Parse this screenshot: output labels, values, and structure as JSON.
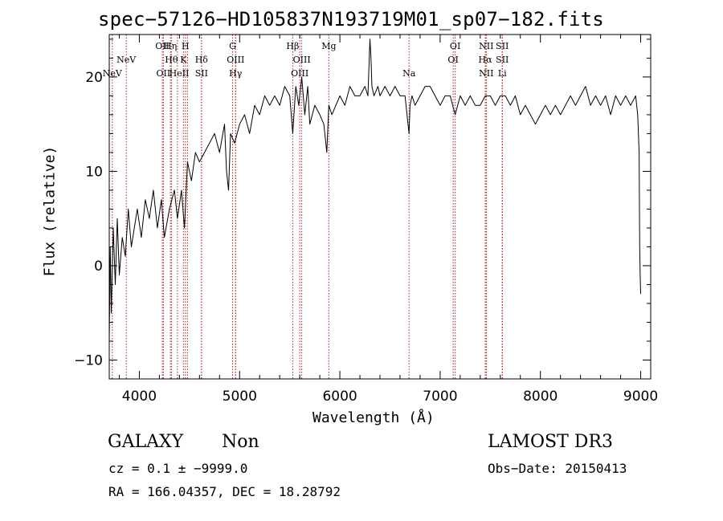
{
  "chart_data": {
    "type": "line",
    "title": "spec−57126−HD105837N193719M01_sp07−182.fits",
    "xlabel": "Wavelength (Å)",
    "ylabel": "Flux (relative)",
    "xlim": [
      3700,
      9100
    ],
    "ylim": [
      -12,
      24.5
    ],
    "xticks": [
      4000,
      5000,
      6000,
      7000,
      8000,
      9000
    ],
    "xtick_labels": [
      "4000",
      "5000",
      "6000",
      "7000",
      "8000",
      "9000"
    ],
    "yticks": [
      -10,
      0,
      10,
      20
    ],
    "ytick_labels": [
      "−10",
      "0",
      "10",
      "20"
    ],
    "series": [
      {
        "name": "flux",
        "x": [
          3700,
          3710,
          3720,
          3740,
          3760,
          3780,
          3800,
          3830,
          3860,
          3890,
          3920,
          3950,
          3980,
          4020,
          4060,
          4100,
          4140,
          4180,
          4220,
          4250,
          4300,
          4350,
          4380,
          4420,
          4450,
          4480,
          4520,
          4560,
          4600,
          4650,
          4700,
          4750,
          4800,
          4850,
          4870,
          4890,
          4910,
          4950,
          5000,
          5050,
          5100,
          5150,
          5200,
          5250,
          5300,
          5350,
          5400,
          5450,
          5500,
          5530,
          5560,
          5590,
          5620,
          5650,
          5680,
          5700,
          5750,
          5800,
          5840,
          5870,
          5890,
          5920,
          5960,
          6000,
          6050,
          6100,
          6150,
          6200,
          6250,
          6280,
          6300,
          6310,
          6320,
          6340,
          6380,
          6400,
          6450,
          6500,
          6550,
          6600,
          6650,
          6680,
          6690,
          6700,
          6720,
          6750,
          6800,
          6850,
          6900,
          6950,
          7000,
          7050,
          7100,
          7150,
          7200,
          7250,
          7300,
          7350,
          7400,
          7450,
          7500,
          7550,
          7600,
          7650,
          7700,
          7750,
          7800,
          7850,
          7900,
          7950,
          8000,
          8050,
          8100,
          8150,
          8200,
          8250,
          8300,
          8350,
          8400,
          8450,
          8500,
          8550,
          8600,
          8650,
          8700,
          8750,
          8800,
          8850,
          8900,
          8950,
          8970,
          8985,
          8990,
          8995,
          9000
        ],
        "y": [
          -8,
          2,
          -5,
          4,
          -2,
          5,
          -1,
          3,
          1,
          6,
          2,
          4,
          6,
          3,
          7,
          5,
          8,
          4,
          7,
          3,
          6,
          8,
          5,
          8,
          4,
          11,
          9,
          12,
          11,
          12,
          13,
          14,
          12,
          15,
          10,
          8,
          14,
          13,
          15,
          16,
          14,
          17,
          16,
          18,
          17,
          18,
          17,
          19,
          18,
          14,
          19,
          17,
          20,
          16,
          19,
          15,
          17,
          16,
          15,
          12,
          17,
          16,
          17,
          18,
          17,
          19,
          18,
          18,
          19,
          18,
          24,
          22,
          19,
          18,
          19,
          18,
          19,
          18,
          19,
          18,
          18,
          15,
          14,
          17,
          18,
          17,
          18,
          19,
          19,
          18,
          17,
          18,
          18,
          16,
          18,
          17,
          18,
          17,
          17,
          18,
          18,
          17,
          18,
          18,
          17,
          18,
          16,
          17,
          16,
          15,
          16,
          17,
          16,
          17,
          16,
          17,
          18,
          17,
          18,
          19,
          17,
          18,
          17,
          18,
          16,
          18,
          17,
          18,
          17,
          18,
          16,
          12,
          2,
          -1,
          -3
        ]
      }
    ],
    "lines": [
      {
        "wave": 3730,
        "label": "NeV",
        "row": 4
      },
      {
        "wave": 3870,
        "label": "NeV",
        "row": 3
      },
      {
        "wave": 4230,
        "label": "OII",
        "row": 1
      },
      {
        "wave": 4240,
        "label": "OII",
        "row": 4
      },
      {
        "wave": 4310,
        "label": "Hη",
        "row": 1
      },
      {
        "wave": 4320,
        "label": "Hθ",
        "row": 3
      },
      {
        "wave": 4380,
        "label": "HeI",
        "row": 4
      },
      {
        "wave": 4460,
        "label": "H",
        "row": 1
      },
      {
        "wave": 4440,
        "label": "K",
        "row": 3
      },
      {
        "wave": 4480,
        "label": "I",
        "row": 4
      },
      {
        "wave": 4620,
        "label": "Hδ",
        "row": 3
      },
      {
        "wave": 4620,
        "label": "SII",
        "row": 4
      },
      {
        "wave": 4930,
        "label": "G",
        "row": 1
      },
      {
        "wave": 4960,
        "label": "OIII",
        "row": 3
      },
      {
        "wave": 4960,
        "label": "Hγ",
        "row": 4
      },
      {
        "wave": 5530,
        "label": "Hβ",
        "row": 1
      },
      {
        "wave": 5620,
        "label": "OIII",
        "row": 3
      },
      {
        "wave": 5600,
        "label": "OIII",
        "row": 4
      },
      {
        "wave": 5890,
        "label": "Mg",
        "row": 1
      },
      {
        "wave": 6690,
        "label": "Na",
        "row": 4
      },
      {
        "wave": 7150,
        "label": "OI",
        "row": 1
      },
      {
        "wave": 7130,
        "label": "OI",
        "row": 3
      },
      {
        "wave": 7460,
        "label": "NII",
        "row": 1
      },
      {
        "wave": 7450,
        "label": "Hα",
        "row": 3
      },
      {
        "wave": 7460,
        "label": "NII",
        "row": 4
      },
      {
        "wave": 7620,
        "label": "SII",
        "row": 1
      },
      {
        "wave": 7620,
        "label": "SII",
        "row": 3
      },
      {
        "wave": 7620,
        "label": "Li",
        "row": 4
      }
    ]
  },
  "footer": {
    "object_type": "GALAXY",
    "subclass": "Non",
    "survey": "LAMOST DR3",
    "redshift": "cz = 0.1 ± −9999.0",
    "obs_date": "Obs−Date: 20150413",
    "coords": "RA = 166.04357, DEC =  18.28792"
  },
  "colors": {
    "line": "#000000",
    "marker": "#b22222"
  }
}
